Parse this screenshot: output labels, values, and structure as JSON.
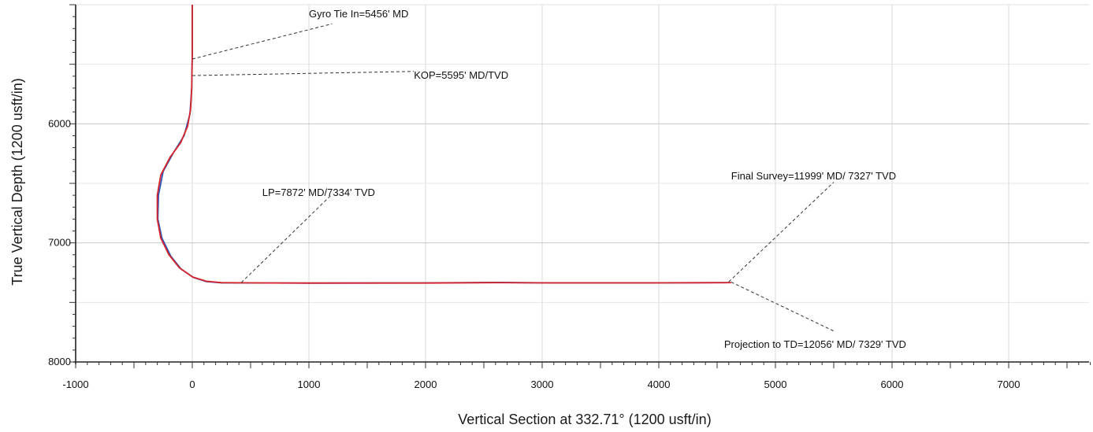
{
  "chart_data": {
    "type": "line",
    "title": "",
    "xlabel": "Vertical Section at 332.71° (1200 usft/in)",
    "ylabel": "True Vertical Depth (1200 usft/in)",
    "xlim": [
      -1000,
      7700
    ],
    "ylim": [
      8000,
      5000
    ],
    "y_inverted": true,
    "grid": true,
    "x_ticks": [
      -1000,
      0,
      1000,
      2000,
      3000,
      4000,
      5000,
      6000,
      7000
    ],
    "x_tick_labels": [
      "-1000",
      "0",
      "1000",
      "2000",
      "3000",
      "4000",
      "5000",
      "6000",
      "7000"
    ],
    "y_ticks": [
      6000,
      7000,
      8000
    ],
    "y_tick_labels": [
      "6000",
      "7000",
      "8000"
    ],
    "series": [
      {
        "color": "#d8232a",
        "points": [
          [
            0,
            5000
          ],
          [
            0,
            5400
          ],
          [
            -5,
            5700
          ],
          [
            -15,
            5880
          ],
          [
            -40,
            6020
          ],
          [
            -100,
            6160
          ],
          [
            -190,
            6280
          ],
          [
            -270,
            6430
          ],
          [
            -300,
            6600
          ],
          [
            -300,
            6800
          ],
          [
            -270,
            6960
          ],
          [
            -200,
            7100
          ],
          [
            -110,
            7210
          ],
          [
            0,
            7285
          ],
          [
            120,
            7322
          ],
          [
            250,
            7334
          ],
          [
            500,
            7336
          ],
          [
            1000,
            7337
          ],
          [
            2000,
            7337
          ],
          [
            2600,
            7334
          ],
          [
            3000,
            7336
          ],
          [
            4000,
            7336
          ],
          [
            4600,
            7334
          ],
          [
            4620,
            7333
          ]
        ]
      },
      {
        "color": "#2c57b8",
        "points": [
          [
            0,
            5000
          ],
          [
            0,
            5400
          ],
          [
            -5,
            5700
          ],
          [
            -20,
            5920
          ],
          [
            -70,
            6100
          ],
          [
            -160,
            6240
          ],
          [
            -250,
            6400
          ],
          [
            -290,
            6600
          ],
          [
            -295,
            6800
          ],
          [
            -260,
            6960
          ],
          [
            -185,
            7110
          ],
          [
            -95,
            7220
          ],
          [
            10,
            7290
          ],
          [
            120,
            7325
          ],
          [
            250,
            7336
          ],
          [
            500,
            7336
          ],
          [
            1000,
            7338
          ],
          [
            2000,
            7336
          ],
          [
            2600,
            7332
          ],
          [
            3000,
            7335
          ],
          [
            4000,
            7335
          ],
          [
            4600,
            7333
          ]
        ]
      }
    ],
    "annotations": [
      {
        "text": "Gyro Tie In=5456' MD",
        "anchor": [
          0,
          5456
        ],
        "elbow": [
          1200,
          5160
        ],
        "label_pos": [
          1000,
          5080
        ]
      },
      {
        "text": "KOP=5595' MD/TVD",
        "anchor": [
          0,
          5595
        ],
        "elbow": [
          1900,
          5560
        ],
        "label_pos": [
          1900,
          5595
        ]
      },
      {
        "text": "LP=7872' MD/7334' TVD",
        "anchor": [
          420,
          7334
        ],
        "elbow": [
          1200,
          6590
        ],
        "label_pos": [
          600,
          6580
        ]
      },
      {
        "text": "Final Survey=11999' MD/ 7327' TVD",
        "anchor": [
          4600,
          7327
        ],
        "elbow": [
          5500,
          6490
        ],
        "label_pos": [
          4620,
          6440
        ]
      },
      {
        "text": "Projection to TD=12056' MD/ 7329' TVD",
        "anchor": [
          4620,
          7329
        ],
        "elbow": [
          5500,
          7740
        ],
        "label_pos": [
          4560,
          7855
        ]
      }
    ]
  }
}
